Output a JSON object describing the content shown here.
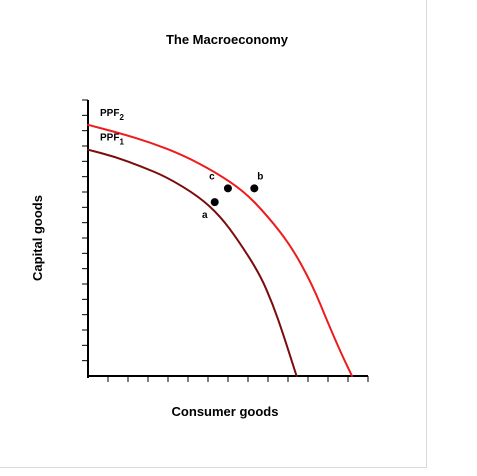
{
  "chart_data": {
    "type": "line",
    "title": "The Macroeconomy",
    "xlabel": "Consumer goods",
    "ylabel": "Capital goods",
    "xlim": [
      0,
      10
    ],
    "ylim": [
      0,
      10
    ],
    "x_ticks": 14,
    "y_ticks": 18,
    "grid": false,
    "legend": "none",
    "series": [
      {
        "name": "PPF1",
        "label_main": "PPF",
        "label_sub": "1",
        "color": "#7a0c0c",
        "x": [
          0,
          1.0,
          2.0,
          3.0,
          4.2,
          5.0,
          5.7,
          6.5,
          7.0,
          7.4,
          7.9
        ],
        "y": [
          8.2,
          7.95,
          7.6,
          7.2,
          6.5,
          5.8,
          4.9,
          3.7,
          2.6,
          1.5,
          0
        ]
      },
      {
        "name": "PPF2",
        "label_main": "PPF",
        "label_sub": "2",
        "color": "#ee1c1c",
        "x": [
          0,
          1.2,
          2.4,
          3.6,
          4.8,
          5.9,
          6.8,
          7.7,
          8.5,
          9.1,
          9.6,
          10.0
        ],
        "y": [
          9.1,
          8.8,
          8.45,
          8.0,
          7.4,
          6.7,
          5.8,
          4.7,
          3.3,
          1.9,
          0.8,
          0
        ]
      }
    ],
    "points": [
      {
        "label": "a",
        "x": 4.8,
        "y": 6.3
      },
      {
        "label": "c",
        "x": 5.3,
        "y": 6.8
      },
      {
        "label": "b",
        "x": 6.3,
        "y": 6.8
      }
    ]
  }
}
